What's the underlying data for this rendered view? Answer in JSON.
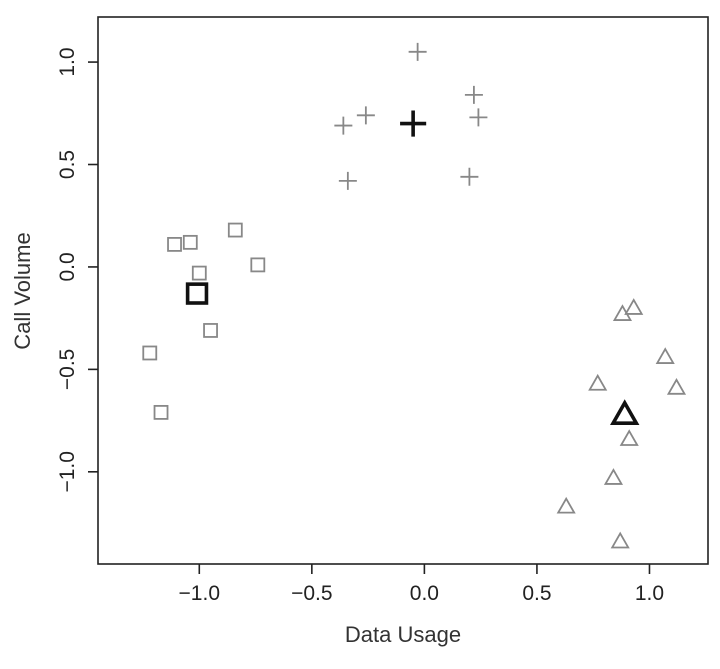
{
  "chart_data": {
    "type": "scatter",
    "title": "",
    "xlabel": "Data Usage",
    "ylabel": "Call Volume",
    "xlim": [
      -1.45,
      1.26
    ],
    "ylim": [
      -1.45,
      1.22
    ],
    "xticks": [
      -1.0,
      -0.5,
      0.0,
      0.5,
      1.0
    ],
    "xtick_labels": [
      "−1.0",
      "−0.5",
      "0.0",
      "0.5",
      "1.0"
    ],
    "yticks": [
      -1.0,
      -0.5,
      0.0,
      0.5,
      1.0
    ],
    "ytick_labels": [
      "−1.0",
      "−0.5",
      "0.0",
      "0.5",
      "1.0"
    ],
    "grid": false,
    "legend": null,
    "colors": {
      "points": "#888888",
      "centers": "#111111",
      "axes": "#222222"
    },
    "series": [
      {
        "marker": "square",
        "points": [
          {
            "x": -1.22,
            "y": -0.42
          },
          {
            "x": -1.17,
            "y": -0.71
          },
          {
            "x": -1.11,
            "y": 0.11
          },
          {
            "x": -1.04,
            "y": 0.12
          },
          {
            "x": -1.0,
            "y": -0.03
          },
          {
            "x": -0.95,
            "y": -0.31
          },
          {
            "x": -0.84,
            "y": 0.18
          },
          {
            "x": -0.74,
            "y": 0.01
          }
        ],
        "center": {
          "x": -1.01,
          "y": -0.13
        }
      },
      {
        "marker": "plus",
        "points": [
          {
            "x": -0.36,
            "y": 0.69
          },
          {
            "x": -0.34,
            "y": 0.42
          },
          {
            "x": -0.26,
            "y": 0.74
          },
          {
            "x": -0.03,
            "y": 1.05
          },
          {
            "x": 0.2,
            "y": 0.44
          },
          {
            "x": 0.22,
            "y": 0.84
          },
          {
            "x": 0.24,
            "y": 0.73
          }
        ],
        "center": {
          "x": -0.05,
          "y": 0.7
        }
      },
      {
        "marker": "triangle",
        "points": [
          {
            "x": 0.63,
            "y": -1.17
          },
          {
            "x": 0.77,
            "y": -0.57
          },
          {
            "x": 0.84,
            "y": -1.03
          },
          {
            "x": 0.87,
            "y": -1.34
          },
          {
            "x": 0.88,
            "y": -0.23
          },
          {
            "x": 0.91,
            "y": -0.84
          },
          {
            "x": 0.93,
            "y": -0.2
          },
          {
            "x": 1.07,
            "y": -0.44
          },
          {
            "x": 1.12,
            "y": -0.59
          }
        ],
        "center": {
          "x": 0.89,
          "y": -0.72
        }
      }
    ]
  }
}
